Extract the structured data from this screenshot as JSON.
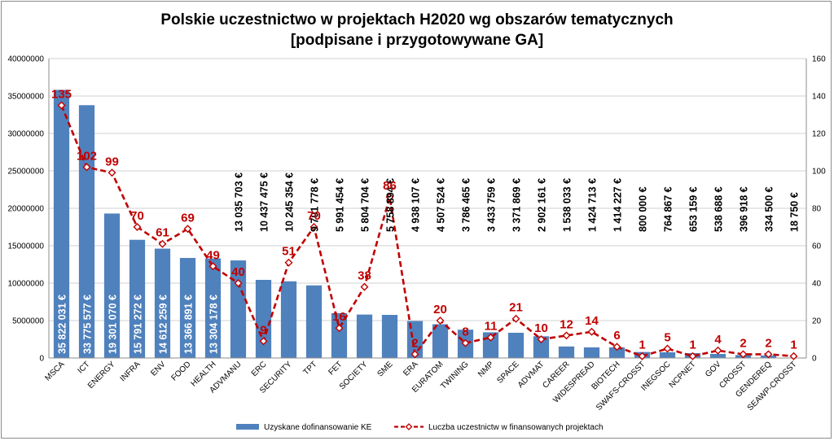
{
  "chart_data": {
    "type": "bar",
    "title_lines": [
      "Polskie uczestnictwo w projektach H2020 wg obszarów tematycznych",
      "[podpisane i przygotowywane GA]"
    ],
    "categories": [
      "MSCA",
      "ICT",
      "ENERGY",
      "INFRA",
      "ENV",
      "FOOD",
      "HEALTH",
      "ADVMANU",
      "ERC",
      "SECURITY",
      "TPT",
      "FET",
      "SOCIETY",
      "SME",
      "ERA",
      "EURATOM",
      "TWINING",
      "NMP",
      "SPACE",
      "ADVMAT",
      "CAREER",
      "WIDESPREAD",
      "BIOTECH",
      "SWAFS-CROSST",
      "INEGSOC",
      "NCPNET",
      "GOV",
      "CROSST",
      "GENDEREQ",
      "SEAWP-CROSST"
    ],
    "series": [
      {
        "name": "Uzyskane dofinansowanie KE",
        "type": "bar",
        "axis": "left",
        "color": "#4f81bd",
        "values": [
          35822031,
          33775577,
          19301070,
          15791272,
          14612259,
          13366891,
          13304178,
          13035703,
          10437475,
          10245354,
          9701778,
          5991454,
          5804704,
          5758894,
          4938107,
          4507524,
          3786465,
          3433759,
          3371869,
          2902161,
          1538033,
          1424713,
          1414227,
          800000,
          764867,
          653159,
          538688,
          396918,
          334500,
          18750
        ],
        "labels": [
          "35 822 031 €",
          "33 775 577 €",
          "19 301 070 €",
          "15 791 272 €",
          "14 612 259 €",
          "13 366 891 €",
          "13 304 178 €",
          "13 035 703 €",
          "10 437 475 €",
          "10 245 354 €",
          "9 701 778 €",
          "5 991 454 €",
          "5 804 704 €",
          "5 758 894 €",
          "4 938 107 €",
          "4 507 524 €",
          "3 786 465 €",
          "3 433 759 €",
          "3 371 869 €",
          "2 902 161 €",
          "1 538 033 €",
          "1 424 713 €",
          "1 414 227 €",
          "800 000 €",
          "764 867 €",
          "653 159 €",
          "538 688 €",
          "396 918 €",
          "334 500 €",
          "18 750 €"
        ]
      },
      {
        "name": "Luczba uczestnictw w finansowanych projektach",
        "type": "line",
        "axis": "right",
        "color": "#c00000",
        "values": [
          135,
          102,
          99,
          70,
          61,
          69,
          49,
          40,
          9,
          51,
          70,
          16,
          38,
          86,
          2,
          20,
          8,
          11,
          21,
          10,
          12,
          14,
          6,
          1,
          5,
          1,
          4,
          2,
          2,
          1
        ]
      }
    ],
    "y_left": {
      "min": 0,
      "max": 40000000,
      "step": 5000000,
      "tick_labels": [
        "0",
        "5000000",
        "10000000",
        "15000000",
        "20000000",
        "25000000",
        "30000000",
        "35000000",
        "40000000"
      ]
    },
    "y_right": {
      "min": 0,
      "max": 160,
      "step": 20,
      "tick_labels": [
        "0",
        "20",
        "40",
        "60",
        "80",
        "100",
        "120",
        "140",
        "160"
      ]
    },
    "grid": true,
    "legend_position": "bottom"
  }
}
